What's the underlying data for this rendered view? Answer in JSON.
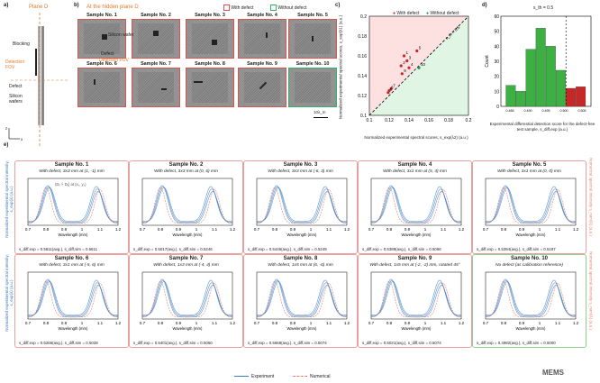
{
  "panel_labels": {
    "a": "a)",
    "b": "b)",
    "c": "c)",
    "d": "d)",
    "e": "e)"
  },
  "panel_a": {
    "plane": "Plane D",
    "blocking": "Blocking",
    "silicon_wafer": "Silicon wafer",
    "defect": "Defect",
    "detection_fov": "Detection FOV",
    "silicon_wafers": "Silicon wafers",
    "axis_z": "z",
    "axis_x": "x"
  },
  "panel_b": {
    "heading": "At the hidden plane D",
    "with_defect": "With defect",
    "without_defect": "Without defect",
    "silicon_wafer": "Silicon wafer",
    "defect": "Defect",
    "detection_fov": "Detection FOV",
    "scale": "10λ_m",
    "samples": [
      {
        "title": "Sample No. 1"
      },
      {
        "title": "Sample No. 2"
      },
      {
        "title": "Sample No. 3"
      },
      {
        "title": "Sample No. 4"
      },
      {
        "title": "Sample No. 5"
      },
      {
        "title": "Sample No. 6"
      },
      {
        "title": "Sample No. 7"
      },
      {
        "title": "Sample No. 8"
      },
      {
        "title": "Sample No. 9"
      },
      {
        "title": "Sample No. 10"
      }
    ]
  },
  "chart_data": [
    {
      "type": "scatter",
      "panel": "c",
      "legend": [
        "With defect",
        "Without defect"
      ],
      "xlabel": "Normalized experimental spectral scores, s_exp(λ2) (a.u.)",
      "ylabel": "Normalized experimental spectral scores, s_exp(λ1) (a.u.)",
      "xlim": [
        0.1,
        0.2
      ],
      "ylim": [
        0.1,
        0.2
      ],
      "xticks": [
        "0.1",
        "0.12",
        "0.14",
        "0.16",
        "0.18",
        "0.2"
      ],
      "yticks": [
        "0.1",
        "0.12",
        "0.14",
        "0.16",
        "0.18",
        "0.2"
      ],
      "threshold_label": "s_th = 0.5",
      "points": [
        {
          "x": 0.135,
          "y": 0.16,
          "label": "1"
        },
        {
          "x": 0.132,
          "y": 0.15,
          "label": "2"
        },
        {
          "x": 0.138,
          "y": 0.155,
          "label": "3"
        },
        {
          "x": 0.14,
          "y": 0.148,
          "label": "4"
        },
        {
          "x": 0.148,
          "y": 0.165,
          "label": "5"
        },
        {
          "x": 0.12,
          "y": 0.125,
          "label": "6"
        },
        {
          "x": 0.122,
          "y": 0.127,
          "label": "7"
        },
        {
          "x": 0.119,
          "y": 0.123,
          "label": "8"
        },
        {
          "x": 0.133,
          "y": 0.142,
          "label": "9"
        },
        {
          "x": 0.15,
          "y": 0.148,
          "label": "10"
        }
      ]
    },
    {
      "type": "bar",
      "panel": "d",
      "title": "s_th = 0.5",
      "xlabel": "Experimental differential detection score for the defect-free test sample, s_diff,exp (a.u.)",
      "ylabel": "Count",
      "ylim": [
        0,
        60
      ],
      "yticks": [
        "0",
        "10",
        "20",
        "30",
        "40",
        "50",
        "60"
      ],
      "xticks": [
        "0.485",
        "0.490",
        "0.495",
        "0.500",
        "0.505"
      ],
      "values": [
        14,
        10,
        38,
        52,
        40,
        24,
        12,
        13
      ],
      "colors": [
        "#3cb043",
        "#3cb043",
        "#3cb043",
        "#3cb043",
        "#3cb043",
        "#3cb043",
        "#c62828",
        "#c62828"
      ]
    }
  ],
  "panel_e": {
    "ylabel_left": "Normalized experimental spectral intensity, s_exp(λ) (a.u.)",
    "ylabel_right": "Numerical spectral intensity s_num(λ) (a.u.)",
    "xlabel": "Wavelength (mm)",
    "xticks": [
      "0.7",
      "0.8",
      "0.9",
      "1",
      "1.1",
      "1.2"
    ],
    "coord_hint": "(Dₓ × Dᵧ) at (xₛ, yₛ)",
    "legend_exp": "Experiment",
    "legend_num": "Numerical",
    "panels": [
      {
        "title": "Sample No. 1",
        "desc": "With defect, 3x3 mm at (1, -1) mm",
        "score_exp": "s_diff,exp = 0.5811(avg.),",
        "score_sim": "s_diff,sim = 0.5611",
        "ok": false
      },
      {
        "title": "Sample No. 2",
        "desc": "With defect, 3x3 mm at (0, 6) mm",
        "score_exp": "s_diff,exp = 0.5017(avg.),",
        "score_sim": "s_diff,sim = 0.5246",
        "ok": false
      },
      {
        "title": "Sample No. 3",
        "desc": "With defect, 3x3 mm at (-6, 3) mm",
        "score_exp": "s_diff,exp = 0.5446(avg.),",
        "score_sim": "s_diff,sim = 0.5249",
        "ok": false
      },
      {
        "title": "Sample No. 4",
        "desc": "With defect, 3x1 mm at (5, 4) mm",
        "score_exp": "s_diff,exp = 0.5389(avg.),",
        "score_sim": "s_diff,sim = 0.5066",
        "ok": false
      },
      {
        "title": "Sample No. 5",
        "desc": "With defect, 3x1 mm at (0, 0) mm",
        "score_exp": "s_diff,exp = 0.5394(avg.),",
        "score_sim": "s_diff,sim = 0.5187",
        "ok": false
      },
      {
        "title": "Sample No. 6",
        "desc": "With defect, 3x1 mm at (-5, 6) mm",
        "score_exp": "s_diff,exp = 0.5266(avg.),",
        "score_sim": "s_diff,sim = 0.5028",
        "ok": false
      },
      {
        "title": "Sample No. 7",
        "desc": "With defect, 1x3 mm at (-4, 4) mm",
        "score_exp": "s_diff,exp = 0.5401(avg.),",
        "score_sim": "s_diff,sim = 0.5060",
        "ok": false
      },
      {
        "title": "Sample No. 8",
        "desc": "With defect, 1x5 mm at (6, -6) mm",
        "score_exp": "s_diff,exp = 0.5668(avg.),",
        "score_sim": "s_diff,sim = 0.5074",
        "ok": false
      },
      {
        "title": "Sample No. 9",
        "desc": "With defect, 1x5 mm at (-2, -2) mm, rotated 45°",
        "score_exp": "s_diff,exp = 0.5021(avg.),",
        "score_sim": "s_diff,sim = 0.5074",
        "ok": false
      },
      {
        "title": "Sample No. 10",
        "desc": "No defect (as calibration reference)",
        "score_exp": "s_diff,exp = 0.4982(avg.),",
        "score_sim": "s_diff,sim = 0.5000",
        "ok": true
      }
    ]
  },
  "watermark": "MEMS",
  "colors": {
    "defect": "#d9534f",
    "nodefect": "#35b06a",
    "experiment": "#3b7bbf",
    "numerical": "#e8836b",
    "green_bar": "#3cb043",
    "red_bar": "#c62828"
  }
}
